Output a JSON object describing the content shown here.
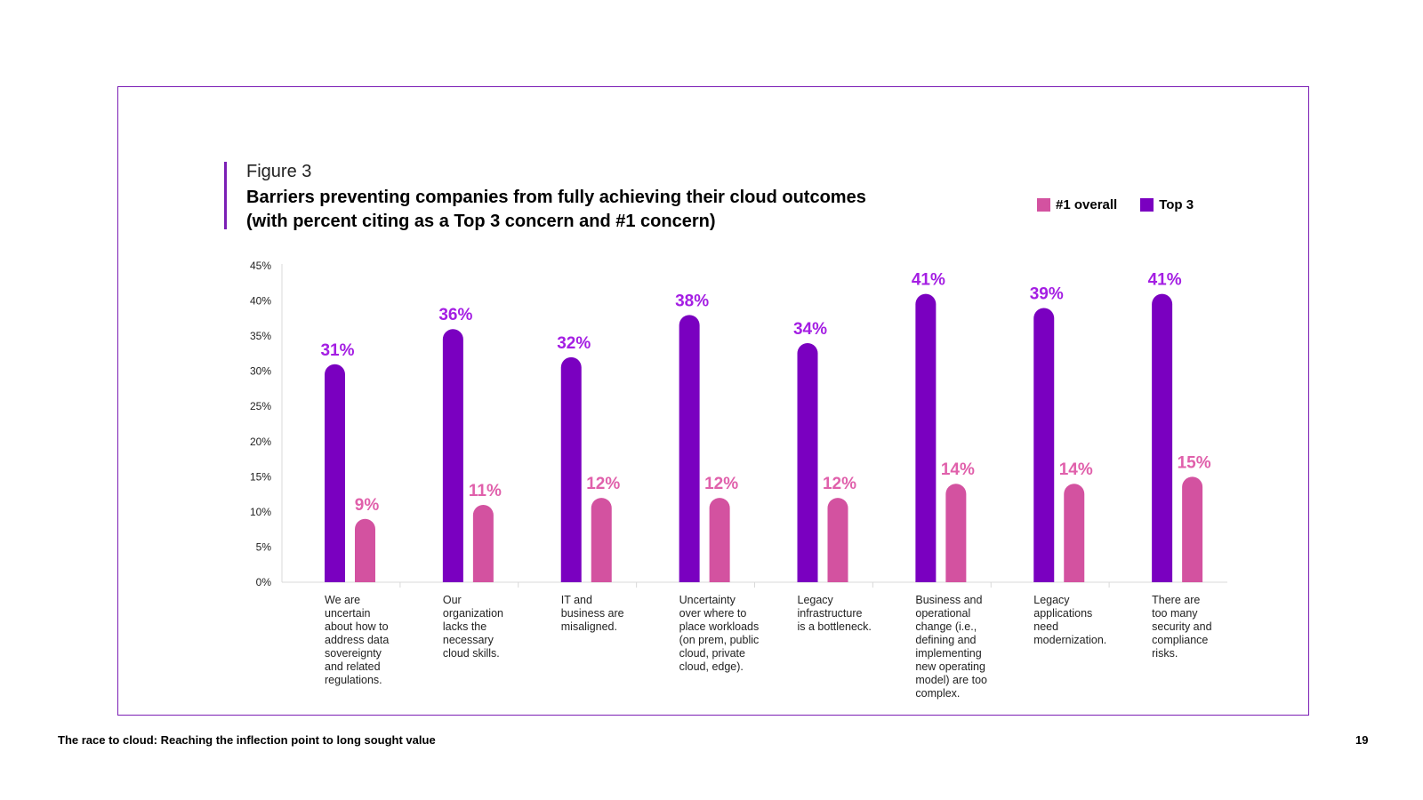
{
  "figure_label": "Figure 3",
  "footer": {
    "left": "The race to cloud:  Reaching the inflection point to long sought value",
    "page_number": "19"
  },
  "colors": {
    "top3": "#7a00c0",
    "overall": "#d352a0",
    "top3_label": "#a41ee3",
    "overall_label": "#e060ab",
    "frame": "#7b1fb5"
  },
  "chart_data": {
    "type": "bar",
    "title": "Barriers preventing companies from fully achieving their cloud outcomes (with percent citing as a Top 3 concern and #1 concern)",
    "title_lines": [
      "Barriers preventing companies from fully achieving their cloud outcomes",
      "(with percent citing as a Top 3 concern and #1 concern)"
    ],
    "xlabel": "",
    "ylabel": "",
    "ylim": [
      0,
      45
    ],
    "yticks": [
      "0%",
      "5%",
      "10%",
      "15%",
      "20%",
      "25%",
      "30%",
      "35%",
      "40%",
      "45%"
    ],
    "grid": false,
    "legend_placement": "top-right",
    "legend": [
      "#1 overall",
      "Top 3"
    ],
    "categories": [
      "We are uncertain about how to address data sovereignty and related regulations.",
      "Our organization lacks the necessary cloud skills.",
      "IT and business are misaligned.",
      "Uncertainty over where to place workloads (on prem, public cloud, private cloud, edge).",
      "Legacy infrastructure is a bottleneck.",
      "Business and operational change (i.e., defining and implementing new operating model) are too complex.",
      "Legacy applications need modernization.",
      "There are too many security and compliance risks."
    ],
    "category_lines": [
      [
        "We are",
        "uncertain",
        "about how to",
        "address data",
        "sovereignty",
        "and related",
        "regulations."
      ],
      [
        "Our",
        "organization",
        "lacks the",
        "necessary",
        "cloud skills."
      ],
      [
        "IT and",
        "business are",
        "misaligned."
      ],
      [
        "Uncertainty",
        "over where to",
        "place workloads",
        "(on prem, public",
        "cloud, private",
        "cloud, edge)."
      ],
      [
        "Legacy",
        "infrastructure",
        "is a bottleneck."
      ],
      [
        "Business and",
        "operational",
        "change (i.e.,",
        "defining and",
        "implementing",
        "new operating",
        "model) are too",
        "complex."
      ],
      [
        "Legacy",
        "applications",
        "need",
        "modernization."
      ],
      [
        "There are",
        "too many",
        "security and",
        "compliance",
        "risks."
      ]
    ],
    "series": [
      {
        "name": "Top 3",
        "values": [
          31,
          36,
          32,
          38,
          34,
          41,
          39,
          41
        ],
        "labels": [
          "31%",
          "36%",
          "32%",
          "38%",
          "34%",
          "41%",
          "39%",
          "41%"
        ]
      },
      {
        "name": "#1 overall",
        "values": [
          9,
          11,
          12,
          12,
          12,
          14,
          14,
          15
        ],
        "labels": [
          "9%",
          "11%",
          "12%",
          "12%",
          "12%",
          "14%",
          "14%",
          "15%"
        ]
      }
    ]
  }
}
